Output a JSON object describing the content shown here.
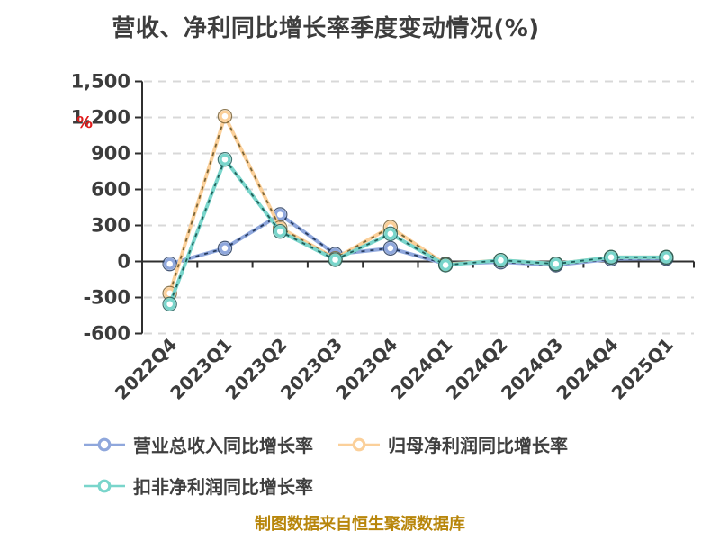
{
  "title": "营收、净利同比增长率季度变动情况(%)",
  "footer": "制图数据来自恒生聚源数据库",
  "colors": {
    "background": "#ffffff",
    "title_text": "#3d3d3d",
    "axis_line": "#2f2f2f",
    "grid_line": "#d8d8d8",
    "tick_label": "#3c3c3c",
    "y_unit_red": "#e01b1b",
    "footer_text": "#b8860b",
    "marker_fill": "#ffffff"
  },
  "chart_data": {
    "type": "line",
    "title": "营收、净利同比增长率季度变动情况(%)",
    "xlabel": "",
    "ylabel": "%",
    "ylim": [
      -600,
      1500
    ],
    "y_tick_labels": [
      "1,500",
      "1,200",
      "900",
      "600",
      "300",
      "0",
      "-300",
      "-600"
    ],
    "y_tick_values": [
      1500,
      1200,
      900,
      600,
      300,
      0,
      -300,
      -600
    ],
    "grid": "dashed horizontal",
    "legend_position": "bottom",
    "x_label_rotation": -45,
    "categories": [
      "2022Q4",
      "2023Q1",
      "2023Q2",
      "2023Q3",
      "2023Q4",
      "2024Q1",
      "2024Q2",
      "2024Q3",
      "2024Q4",
      "2025Q1"
    ],
    "series": [
      {
        "name": "营业总收入同比增长率",
        "color": "#8fa7dc",
        "dark_color": "#253a5e",
        "values": [
          -20,
          110,
          390,
          60,
          110,
          -20,
          -5,
          -30,
          20,
          25
        ]
      },
      {
        "name": "归母净利润同比增长率",
        "color": "#fbd09a",
        "dark_color": "#7a6233",
        "values": [
          -265,
          1210,
          280,
          25,
          285,
          -25,
          10,
          -20,
          35,
          35
        ]
      },
      {
        "name": "扣非净利润同比增长率",
        "color": "#79d5cb",
        "dark_color": "#1f5e59",
        "values": [
          -355,
          850,
          250,
          15,
          230,
          -30,
          10,
          -20,
          35,
          35
        ]
      }
    ]
  }
}
